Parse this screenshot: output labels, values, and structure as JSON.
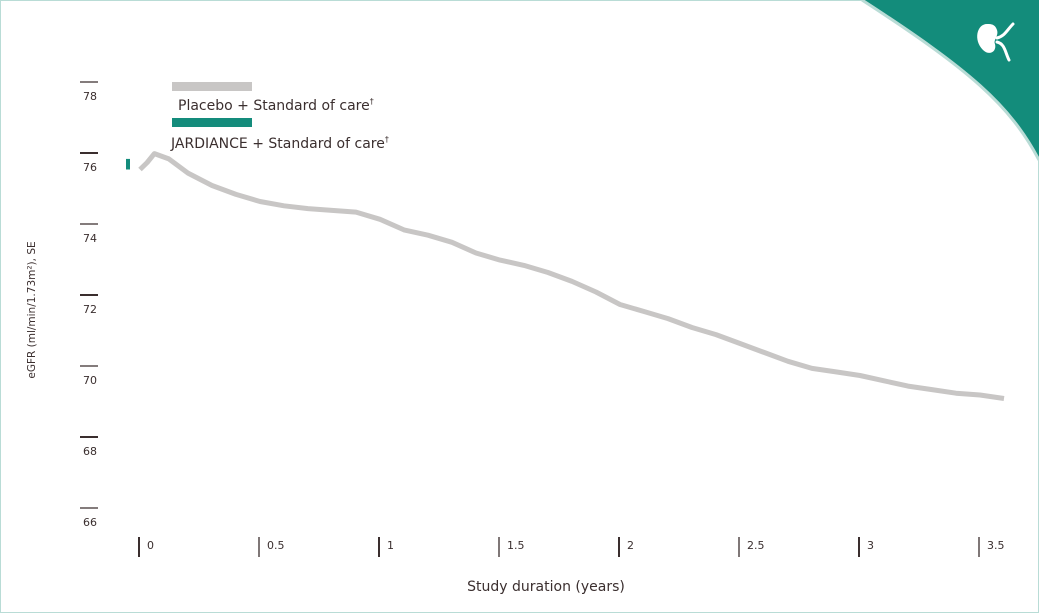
{
  "chart_data": {
    "type": "line",
    "xlabel": "Study duration (years)",
    "ylabel": "eGFR (ml/min/1.73m²), SE",
    "xlim": [
      0,
      3.6
    ],
    "ylim": [
      66,
      78
    ],
    "x_ticks": [
      "0",
      "0.5",
      "1",
      "1.5",
      "2",
      "2.5",
      "3",
      "3.5"
    ],
    "y_ticks": [
      "78",
      "76",
      "74",
      "72",
      "70",
      "68",
      "66"
    ],
    "legend": [
      {
        "name": "Placebo",
        "suffix": " + Standard of care",
        "mark": "†",
        "color": "#c8c6c5"
      },
      {
        "name": "JARDIANCE",
        "suffix": " + Standard of care",
        "mark": "†",
        "color": "#148c7c"
      }
    ],
    "series": [
      {
        "name": "Placebo + Standard of care",
        "color": "#c8c6c5",
        "x": [
          0.0,
          0.03,
          0.06,
          0.12,
          0.2,
          0.3,
          0.4,
          0.5,
          0.6,
          0.7,
          0.8,
          0.9,
          1.0,
          1.1,
          1.2,
          1.3,
          1.4,
          1.5,
          1.6,
          1.7,
          1.8,
          1.9,
          2.0,
          2.1,
          2.2,
          2.3,
          2.4,
          2.5,
          2.6,
          2.7,
          2.8,
          2.9,
          3.0,
          3.1,
          3.2,
          3.3,
          3.4,
          3.5,
          3.6
        ],
        "values": [
          75.9,
          76.1,
          76.35,
          76.2,
          75.8,
          75.45,
          75.2,
          75.0,
          74.88,
          74.8,
          74.75,
          74.7,
          74.5,
          74.2,
          74.05,
          73.85,
          73.55,
          73.35,
          73.2,
          73.0,
          72.75,
          72.45,
          72.1,
          71.9,
          71.7,
          71.45,
          71.25,
          71.0,
          70.75,
          70.5,
          70.3,
          70.2,
          70.1,
          69.95,
          69.8,
          69.7,
          69.6,
          69.55,
          69.45
        ]
      },
      {
        "name": "JARDIANCE + Standard of care",
        "color": "#148c7c",
        "x": [
          -0.05,
          -0.05
        ],
        "values": [
          75.9,
          76.2
        ]
      }
    ]
  },
  "logo": {
    "icon": "kidney-icon"
  }
}
